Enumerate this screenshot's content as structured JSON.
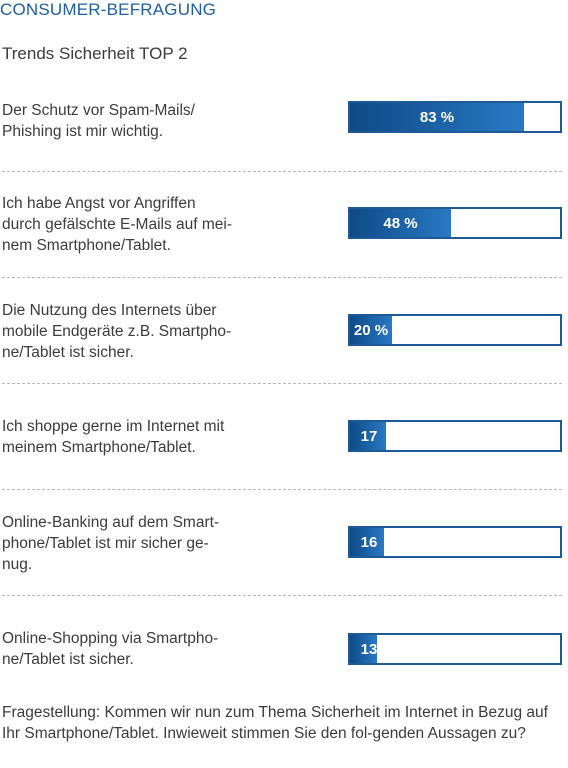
{
  "header": {
    "title": "CONSUMER-BEFRAGUNG",
    "subtitle": "Trends Sicherheit TOP 2"
  },
  "chart_data": {
    "type": "bar",
    "orientation": "horizontal",
    "title": "Trends Sicherheit TOP 2",
    "xlim": [
      0,
      100
    ],
    "categories": [
      "Der Schutz vor Spam-Mails/ Phishing ist mir wichtig.",
      "Ich habe Angst vor Angriffen durch gefälschte E-Mails auf mei-nem Smartphone/Tablet.",
      "Die Nutzung des Internets über mobile Endgeräte z.B. Smartpho-ne/Tablet ist sicher.",
      "Ich shoppe gerne im Internet mit meinem Smartphone/Tablet.",
      "Online-Banking auf dem Smart-phone/Tablet ist mir sicher ge-nug.",
      "Online-Shopping via Smartpho-ne/Tablet ist sicher."
    ],
    "values": [
      83,
      48,
      20,
      17,
      16,
      13
    ],
    "value_labels": [
      "83 %",
      "48 %",
      "20 %",
      "17",
      "16",
      "13"
    ],
    "label_lines": [
      [
        "Der Schutz vor Spam-Mails/",
        "Phishing ist mir wichtig."
      ],
      [
        "Ich habe Angst vor Angriffen",
        "durch gefälschte E-Mails auf mei-",
        "nem Smartphone/Tablet."
      ],
      [
        "Die Nutzung des Internets über",
        "mobile Endgeräte z.B. Smartpho-",
        "ne/Tablet ist sicher."
      ],
      [
        "Ich shoppe gerne im Internet mit",
        "meinem Smartphone/Tablet."
      ],
      [
        "Online-Banking auf dem Smart-",
        "phone/Tablet ist mir sicher ge-",
        "nug."
      ],
      [
        "Online-Shopping via Smartpho-",
        "ne/Tablet ist sicher."
      ]
    ],
    "bar_color": "#1d5a96"
  },
  "footnote": "Fragestellung: Kommen wir nun zum Thema Sicherheit im Internet in Bezug auf Ihr Smartphone/Tablet. Inwieweit stimmen Sie den fol-genden Aussagen zu?"
}
